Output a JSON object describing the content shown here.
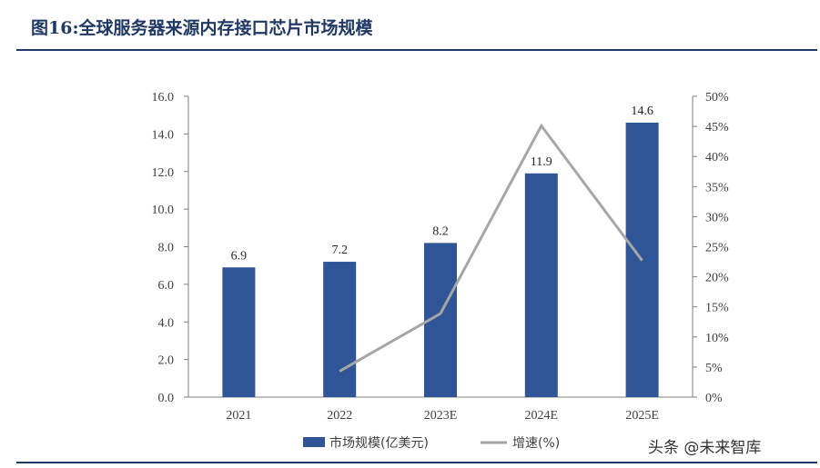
{
  "title": "图16:全球服务器来源内存接口芯片市场规模",
  "watermark": "头条 @未来智库",
  "chart_data": {
    "type": "bar",
    "categories": [
      "2021",
      "2022",
      "2023E",
      "2024E",
      "2025E"
    ],
    "series": [
      {
        "name": "市场规模(亿美元)",
        "type": "bar",
        "axis": "left",
        "color": "#2f5597",
        "values": [
          6.9,
          7.2,
          8.2,
          11.9,
          14.6
        ],
        "data_labels": [
          "6.9",
          "7.2",
          "8.2",
          "11.9",
          "14.6"
        ]
      },
      {
        "name": "增速(%)",
        "type": "line",
        "axis": "right",
        "color": "#a6a6a6",
        "values": [
          null,
          4.3,
          13.9,
          45.1,
          22.7
        ]
      }
    ],
    "y_left": {
      "min": 0,
      "max": 16,
      "ticks": [
        "0.0",
        "2.0",
        "4.0",
        "6.0",
        "8.0",
        "10.0",
        "12.0",
        "14.0",
        "16.0"
      ]
    },
    "y_right": {
      "min": 0,
      "max": 50,
      "ticks": [
        "0%",
        "5%",
        "10%",
        "15%",
        "20%",
        "25%",
        "30%",
        "35%",
        "40%",
        "45%",
        "50%"
      ]
    },
    "grid": false,
    "legend_position": "bottom"
  }
}
